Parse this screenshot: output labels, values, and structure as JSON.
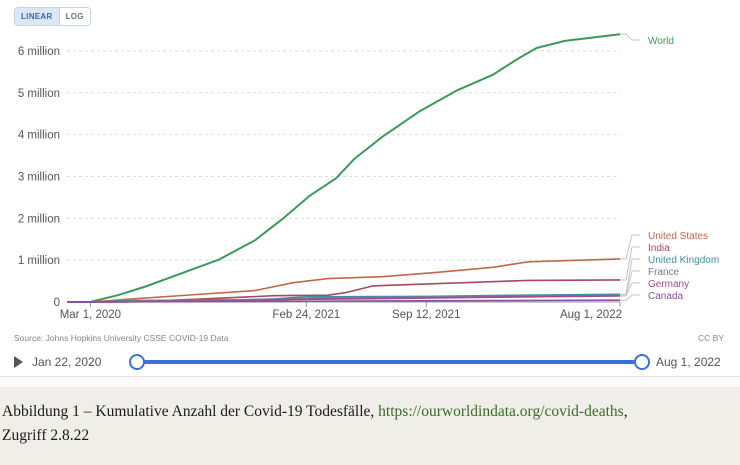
{
  "toggle": {
    "linear": "LINEAR",
    "log": "LOG"
  },
  "source": "Source: Johns Hopkins University CSSE COVID-19 Data",
  "license": "CC BY",
  "timeline": {
    "start": "Jan 22, 2020",
    "end": "Aug 1, 2022"
  },
  "caption": {
    "text": "Abbildung 1 – Kumulative Anzahl der Covid-19 Todesfälle, ",
    "link": "https://ourworldindata.org/covid-deaths",
    "after": ",",
    "access": "Zugriff 2.8.22"
  },
  "chart_data": {
    "type": "line",
    "x_ticks": [
      "Mar 1, 2020",
      "Feb 24, 2021",
      "Sep 12, 2021",
      "Aug 1, 2022"
    ],
    "y_ticks": [
      "0",
      "1 million",
      "2 million",
      "3 million",
      "4 million",
      "5 million",
      "6 million"
    ],
    "ylim": [
      0,
      6500000
    ],
    "x_range": [
      "2020-01-22",
      "2022-08-01"
    ],
    "grid": true,
    "legend": "right",
    "series": [
      {
        "name": "World",
        "color": "#3a9a5c",
        "points": [
          [
            "2020-01-22",
            0
          ],
          [
            "2020-03-01",
            3000
          ],
          [
            "2020-04-15",
            160000
          ],
          [
            "2020-06-01",
            370000
          ],
          [
            "2020-08-01",
            690000
          ],
          [
            "2020-10-01",
            1010000
          ],
          [
            "2020-12-01",
            1480000
          ],
          [
            "2021-01-15",
            1980000
          ],
          [
            "2021-03-01",
            2530000
          ],
          [
            "2021-04-15",
            2960000
          ],
          [
            "2021-05-15",
            3420000
          ],
          [
            "2021-07-01",
            3950000
          ],
          [
            "2021-09-01",
            4560000
          ],
          [
            "2021-11-01",
            5050000
          ],
          [
            "2022-01-01",
            5430000
          ],
          [
            "2022-02-15",
            5840000
          ],
          [
            "2022-03-15",
            6070000
          ],
          [
            "2022-05-01",
            6240000
          ],
          [
            "2022-08-01",
            6400000
          ]
        ]
      },
      {
        "name": "United States",
        "color": "#c0684a",
        "points": [
          [
            "2020-01-22",
            0
          ],
          [
            "2020-03-01",
            0
          ],
          [
            "2020-05-01",
            65000
          ],
          [
            "2020-08-01",
            155000
          ],
          [
            "2020-12-01",
            275000
          ],
          [
            "2021-02-01",
            460000
          ],
          [
            "2021-04-01",
            560000
          ],
          [
            "2021-07-01",
            605000
          ],
          [
            "2021-10-01",
            710000
          ],
          [
            "2022-01-01",
            830000
          ],
          [
            "2022-03-01",
            960000
          ],
          [
            "2022-08-01",
            1030000
          ]
        ]
      },
      {
        "name": "India",
        "color": "#a54a5c",
        "points": [
          [
            "2020-01-22",
            0
          ],
          [
            "2020-05-01",
            2000
          ],
          [
            "2020-09-01",
            70000
          ],
          [
            "2021-01-01",
            150000
          ],
          [
            "2021-04-01",
            162000
          ],
          [
            "2021-05-01",
            225000
          ],
          [
            "2021-06-15",
            385000
          ],
          [
            "2021-12-01",
            470000
          ],
          [
            "2022-03-01",
            516000
          ],
          [
            "2022-08-01",
            527000
          ]
        ]
      },
      {
        "name": "United Kingdom",
        "color": "#3f8fa5",
        "points": [
          [
            "2020-01-22",
            0
          ],
          [
            "2020-03-15",
            0
          ],
          [
            "2020-05-01",
            35000
          ],
          [
            "2020-11-01",
            50000
          ],
          [
            "2021-01-01",
            75000
          ],
          [
            "2021-02-24",
            125000
          ],
          [
            "2021-09-12",
            134000
          ],
          [
            "2022-02-01",
            160000
          ],
          [
            "2022-08-01",
            185000
          ]
        ]
      },
      {
        "name": "France",
        "color": "#7a7a8e",
        "points": [
          [
            "2020-01-22",
            0
          ],
          [
            "2020-04-01",
            5000
          ],
          [
            "2020-06-01",
            30000
          ],
          [
            "2020-12-01",
            55000
          ],
          [
            "2021-04-01",
            96000
          ],
          [
            "2021-09-01",
            115000
          ],
          [
            "2022-03-01",
            140000
          ],
          [
            "2022-08-01",
            153000
          ]
        ]
      },
      {
        "name": "Germany",
        "color": "#a24a8e",
        "points": [
          [
            "2020-01-22",
            0
          ],
          [
            "2020-04-01",
            2000
          ],
          [
            "2020-06-01",
            9000
          ],
          [
            "2020-12-01",
            25000
          ],
          [
            "2021-02-01",
            60000
          ],
          [
            "2021-09-01",
            93000
          ],
          [
            "2022-03-01",
            125000
          ],
          [
            "2022-08-01",
            143000
          ]
        ]
      },
      {
        "name": "Canada",
        "color": "#8c4ea8",
        "points": [
          [
            "2020-01-22",
            0
          ],
          [
            "2020-05-01",
            4000
          ],
          [
            "2020-12-01",
            13000
          ],
          [
            "2021-05-01",
            25000
          ],
          [
            "2022-01-01",
            33000
          ],
          [
            "2022-08-01",
            43000
          ]
        ]
      }
    ]
  }
}
